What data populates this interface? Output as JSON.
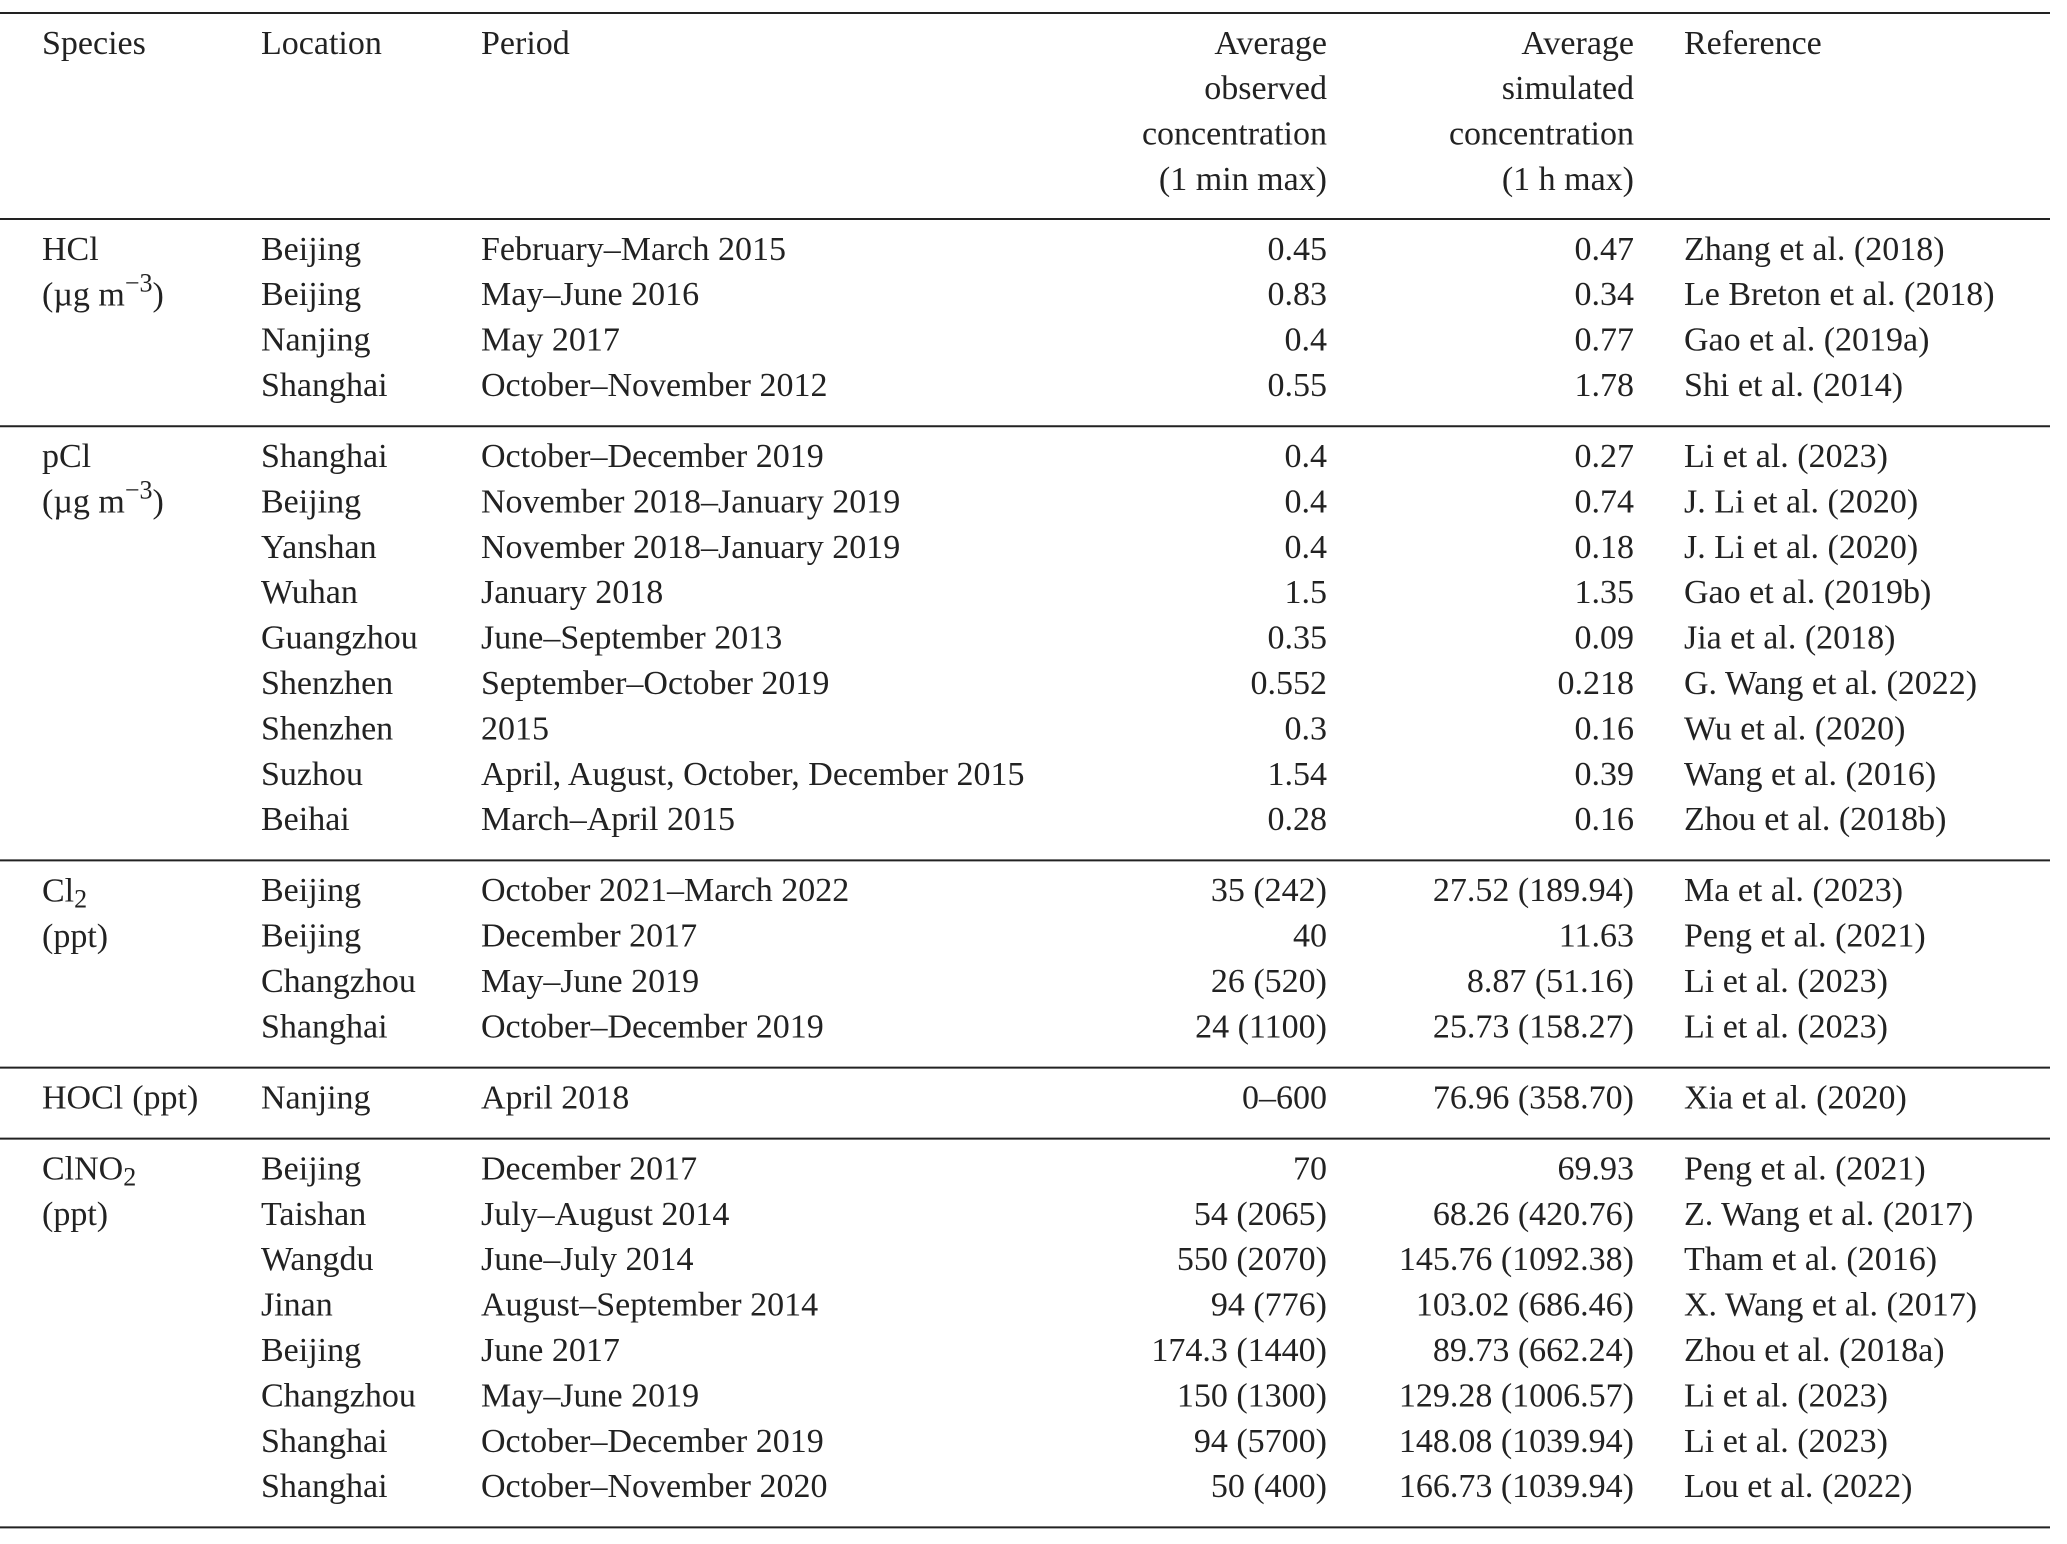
{
  "table": {
    "columns": [
      [
        "Species"
      ],
      [
        "Location"
      ],
      [
        "Period"
      ],
      [
        "Average",
        "observed",
        "concentration",
        "(1 min max)"
      ],
      [
        "Average",
        "simulated",
        "concentration",
        "(1 h max)"
      ],
      [
        "Reference"
      ]
    ],
    "groups": [
      {
        "species": [
          {
            "text": "HCl"
          }
        ],
        "unit": [
          {
            "text": "(µg m"
          },
          {
            "text": "−3",
            "style": "sup"
          },
          {
            "text": ")"
          }
        ],
        "unit_inline": false,
        "rows": [
          [
            "Beijing",
            "February–March 2015",
            "0.45",
            "0.47",
            "Zhang et al. (2018)"
          ],
          [
            "Beijing",
            "May–June 2016",
            "0.83",
            "0.34",
            "Le Breton et al. (2018)"
          ],
          [
            "Nanjing",
            "May 2017",
            "0.4",
            "0.77",
            "Gao et al. (2019a)"
          ],
          [
            "Shanghai",
            "October–November 2012",
            "0.55",
            "1.78",
            "Shi et al. (2014)"
          ]
        ]
      },
      {
        "species": [
          {
            "text": "pCl"
          }
        ],
        "unit": [
          {
            "text": "(µg m"
          },
          {
            "text": "−3",
            "style": "sup"
          },
          {
            "text": ")"
          }
        ],
        "unit_inline": false,
        "rows": [
          [
            "Shanghai",
            "October–December 2019",
            "0.4",
            "0.27",
            "Li et al. (2023)"
          ],
          [
            "Beijing",
            "November 2018–January 2019",
            "0.4",
            "0.74",
            "J. Li et al. (2020)"
          ],
          [
            "Yanshan",
            "November 2018–January 2019",
            "0.4",
            "0.18",
            "J. Li et al. (2020)"
          ],
          [
            "Wuhan",
            "January 2018",
            "1.5",
            "1.35",
            "Gao et al. (2019b)"
          ],
          [
            "Guangzhou",
            "June–September 2013",
            "0.35",
            "0.09",
            "Jia et al. (2018)"
          ],
          [
            "Shenzhen",
            "September–October 2019",
            "0.552",
            "0.218",
            "G. Wang et al. (2022)"
          ],
          [
            "Shenzhen",
            "2015",
            "0.3",
            "0.16",
            "Wu et al. (2020)"
          ],
          [
            "Suzhou",
            "April, August, October, December 2015",
            "1.54",
            "0.39",
            "Wang et al. (2016)"
          ],
          [
            "Beihai",
            "March–April 2015",
            "0.28",
            "0.16",
            "Zhou et al. (2018b)"
          ]
        ]
      },
      {
        "species": [
          {
            "text": "Cl"
          },
          {
            "text": "2",
            "style": "sub"
          }
        ],
        "unit": [
          {
            "text": "(ppt)"
          }
        ],
        "unit_inline": false,
        "rows": [
          [
            "Beijing",
            "October 2021–March 2022",
            "35 (242)",
            "27.52 (189.94)",
            "Ma et al. (2023)"
          ],
          [
            "Beijing",
            "December 2017",
            "40",
            "11.63",
            "Peng et al. (2021)"
          ],
          [
            "Changzhou",
            "May–June 2019",
            "26 (520)",
            "8.87 (51.16)",
            "Li et al. (2023)"
          ],
          [
            "Shanghai",
            "October–December 2019",
            "24 (1100)",
            "25.73 (158.27)",
            "Li et al. (2023)"
          ]
        ]
      },
      {
        "species": [
          {
            "text": "HOCl"
          }
        ],
        "unit": [
          {
            "text": "(ppt)"
          }
        ],
        "unit_inline": true,
        "rows": [
          [
            "Nanjing",
            "April 2018",
            "0–600",
            "76.96 (358.70)",
            "Xia et al. (2020)"
          ]
        ]
      },
      {
        "species": [
          {
            "text": "ClNO"
          },
          {
            "text": "2",
            "style": "sub"
          }
        ],
        "unit": [
          {
            "text": "(ppt)"
          }
        ],
        "unit_inline": false,
        "rows": [
          [
            "Beijing",
            "December 2017",
            "70",
            "69.93",
            "Peng et al. (2021)"
          ],
          [
            "Taishan",
            "July–August 2014",
            "54 (2065)",
            "68.26 (420.76)",
            "Z. Wang et al. (2017)"
          ],
          [
            "Wangdu",
            "June–July 2014",
            "550 (2070)",
            "145.76 (1092.38)",
            "Tham et al. (2016)"
          ],
          [
            "Jinan",
            "August–September 2014",
            "94 (776)",
            "103.02 (686.46)",
            "X. Wang et al. (2017)"
          ],
          [
            "Beijing",
            "June 2017",
            "174.3 (1440)",
            "89.73 (662.24)",
            "Zhou et al. (2018a)"
          ],
          [
            "Changzhou",
            "May–June 2019",
            "150 (1300)",
            "129.28 (1006.57)",
            "Li et al. (2023)"
          ],
          [
            "Shanghai",
            "October–December 2019",
            "94 (5700)",
            "148.08 (1039.94)",
            "Li et al. (2023)"
          ],
          [
            "Shanghai",
            "October–November 2020",
            "50 (400)",
            "166.73 (1039.94)",
            "Lou et al. (2022)"
          ]
        ]
      }
    ]
  }
}
